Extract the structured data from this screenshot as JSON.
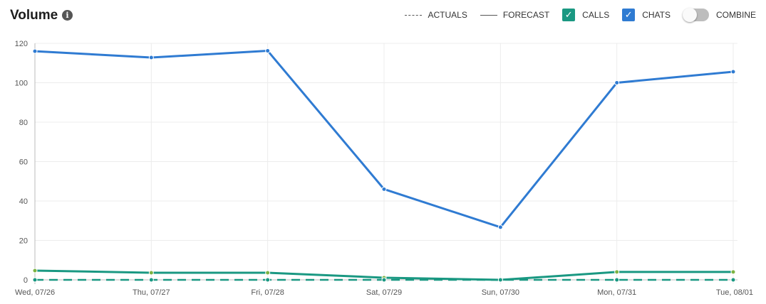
{
  "header": {
    "title": "Volume",
    "info_icon": "i"
  },
  "legend": {
    "actuals": "ACTUALS",
    "forecast": "FORECAST",
    "calls": "CALLS",
    "chats": "CHATS",
    "combine": "COMBINE",
    "calls_checked": true,
    "chats_checked": true,
    "combine_on": false
  },
  "colors": {
    "chats": "#2f7bd2",
    "calls": "#1a9882",
    "calls_point": "#7cb342"
  },
  "chart_data": {
    "type": "line",
    "title": "Volume",
    "categories": [
      "Wed, 07/26",
      "Thu, 07/27",
      "Fri, 07/28",
      "Sat, 07/29",
      "Sun, 07/30",
      "Mon, 07/31",
      "Tue, 08/01"
    ],
    "ylim": [
      0,
      120
    ],
    "yticks": [
      0,
      20,
      40,
      60,
      80,
      100,
      120
    ],
    "grid": true,
    "series": [
      {
        "name": "Chats Forecast",
        "style": "solid",
        "values": [
          116,
          112.8,
          116.2,
          46,
          26.7,
          100,
          105.6
        ]
      },
      {
        "name": "Calls Forecast",
        "style": "solid",
        "values": [
          4.7,
          3.6,
          3.6,
          1.1,
          0,
          4,
          4
        ]
      },
      {
        "name": "Calls Actuals",
        "style": "dashed",
        "values": [
          0,
          0,
          0,
          0,
          0,
          0,
          0
        ]
      }
    ]
  }
}
